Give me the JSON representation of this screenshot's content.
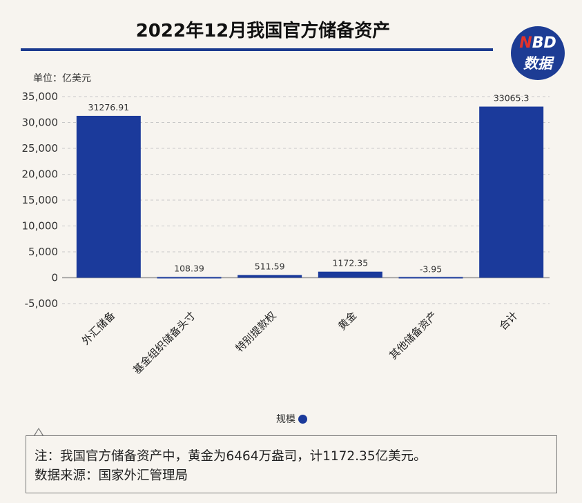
{
  "header": {
    "title": "2022年12月我国官方储备资产"
  },
  "logo": {
    "line1_accent": "N",
    "line1_rest": "BD",
    "line2": "数据"
  },
  "unit_label": "单位：亿美元",
  "legend": {
    "label": "规模",
    "color": "#1b3a9b"
  },
  "note": {
    "line1": "注：我国官方储备资产中，黄金为6464万盎司，计1172.35亿美元。",
    "line2": "数据来源：国家外汇管理局"
  },
  "colors": {
    "bar": "#1b3a9b",
    "title_rule": "#1b3a8f",
    "background": "#f7f4ef"
  },
  "chart_data": {
    "type": "bar",
    "categories": [
      "外汇储备",
      "基金组织储备头寸",
      "特别提款权",
      "黄金",
      "其他储备资产",
      "合计"
    ],
    "series": [
      {
        "name": "规模",
        "values": [
          31276.91,
          108.39,
          511.59,
          1172.35,
          -3.95,
          33065.3
        ]
      }
    ],
    "data_labels": [
      "31276.91",
      "108.39",
      "511.59",
      "1172.35",
      "-3.95",
      "33065.3"
    ],
    "y_ticks": [
      "35,000",
      "30,000",
      "25,000",
      "20,000",
      "15,000",
      "10,000",
      "5,000",
      "0",
      "-5,000"
    ],
    "tick_values": [
      35000,
      30000,
      25000,
      20000,
      15000,
      10000,
      5000,
      0,
      -5000
    ],
    "ylim": [
      -5000,
      35000
    ],
    "ylabel": "单位：亿美元",
    "grid": true,
    "legend_position": "bottom"
  }
}
